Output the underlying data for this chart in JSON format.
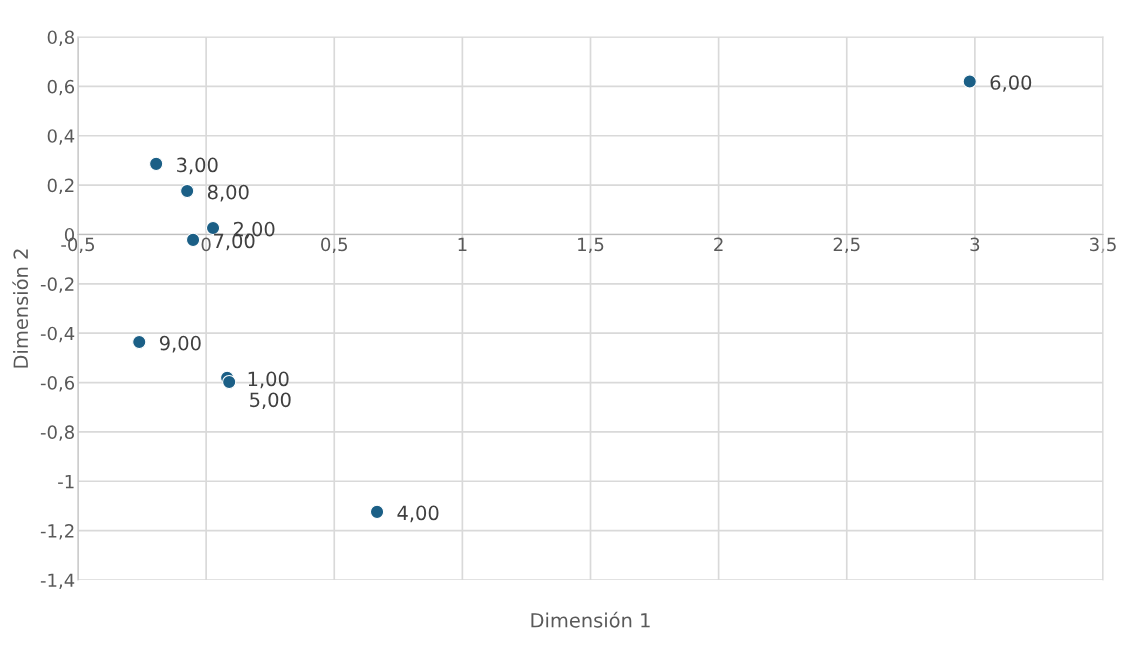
{
  "chart_data": {
    "type": "scatter",
    "xlabel": "Dimensión 1",
    "ylabel": "Dimensión 2",
    "x": [
      2.98,
      -0.195,
      -0.074,
      0.027,
      -0.051,
      -0.261,
      0.082,
      0.09,
      0.667
    ],
    "values": [
      0.62,
      0.286,
      0.176,
      0.026,
      -0.022,
      -0.436,
      -0.581,
      -0.598,
      -1.124
    ],
    "color": "#1b5f86",
    "marker": "circle",
    "grid": true,
    "xlim": [
      -0.5,
      3.5
    ],
    "ylim": [
      -1.4,
      0.8
    ],
    "xticks": [
      {
        "value": -0.5,
        "label": "-0,5"
      },
      0,
      {
        "value": 0.5,
        "label": "0,5"
      },
      1,
      {
        "value": 1.5,
        "label": "1,5"
      },
      2,
      {
        "value": 2.5,
        "label": "2,5"
      },
      3,
      {
        "value": 3.5,
        "label": "3,5"
      }
    ],
    "yticks": [
      {
        "value": -1.4,
        "label": "-1,4"
      },
      {
        "value": -1.2,
        "label": "-1,2"
      },
      -1,
      {
        "value": -0.8,
        "label": "-0,8"
      },
      {
        "value": -0.6,
        "label": "-0,6"
      },
      {
        "value": -0.4,
        "label": "-0,4"
      },
      {
        "value": -0.2,
        "label": "-0,2"
      },
      0,
      {
        "value": 0.2,
        "label": "0,2"
      },
      {
        "value": 0.4,
        "label": "0,4"
      },
      {
        "value": 0.6,
        "label": "0,6"
      },
      {
        "value": 0.8,
        "label": "0,8"
      }
    ],
    "annotations": [
      {
        "text": "6,00",
        "x": 2.98,
        "y": 0.62
      },
      {
        "text": "3,00",
        "x": -0.195,
        "y": 0.286
      },
      {
        "text": "8,00",
        "x": -0.074,
        "y": 0.176
      },
      {
        "text": "2,00",
        "x": 0.027,
        "y": 0.026
      },
      {
        "text": "7,00",
        "x": -0.051,
        "y": -0.022
      },
      {
        "text": "9,00",
        "x": -0.261,
        "y": -0.436
      },
      {
        "text": "1,00",
        "x": 0.082,
        "y": -0.581
      },
      {
        "text": "5,00",
        "x": 0.09,
        "y": -0.598
      },
      {
        "text": "4,00",
        "x": 0.667,
        "y": -1.124
      }
    ]
  }
}
